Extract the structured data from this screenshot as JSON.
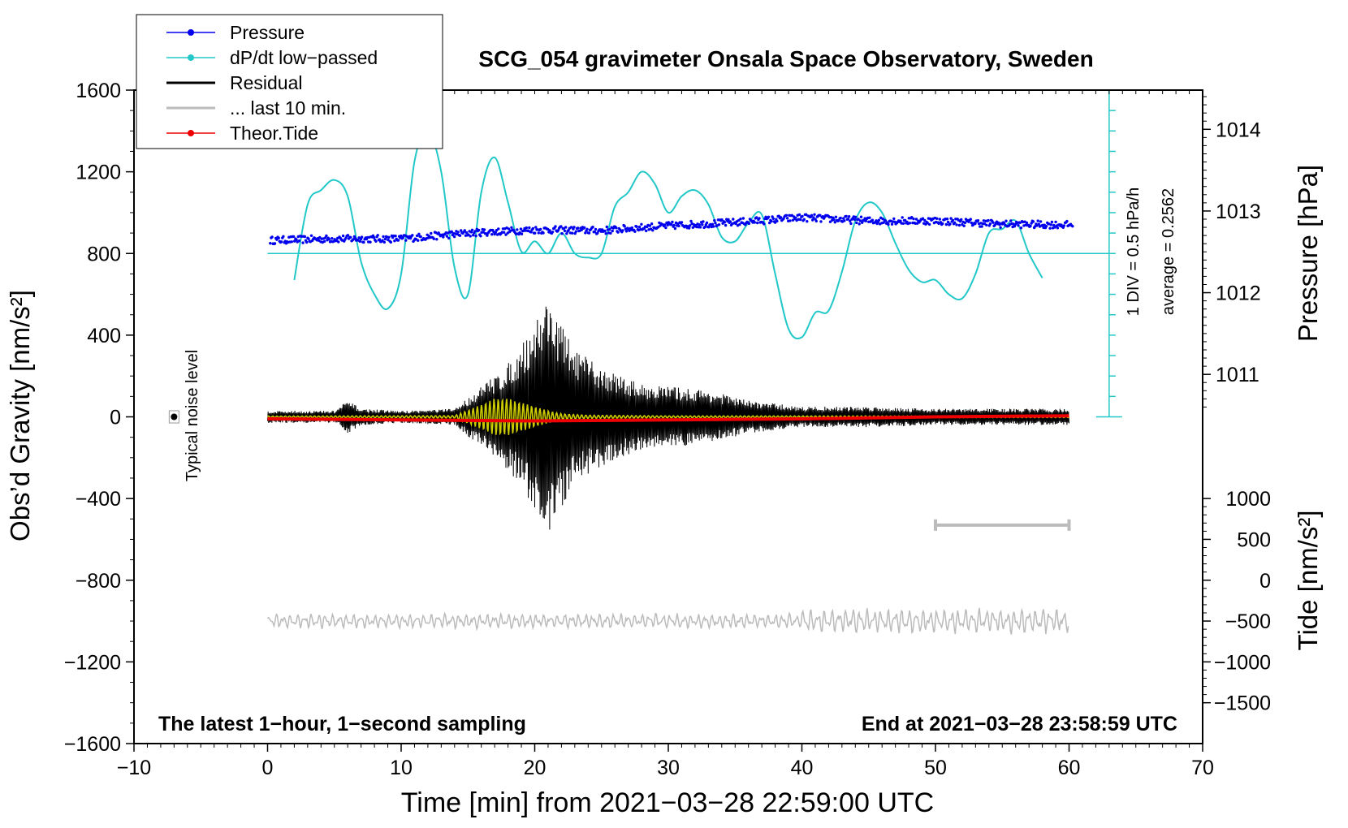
{
  "chart_data": {
    "type": "line",
    "title": "SCG_054 gravimeter Onsala Space Observatory, Sweden",
    "xlabel": "Time [min] from 2021−03−28 22:59:00 UTC",
    "ylabel_left": "Obs’d Gravity [nm/s²]",
    "ylabel_pressure": "Pressure [hPa]",
    "ylabel_tide": "Tide [nm/s²]",
    "xlim": [
      -10,
      70
    ],
    "ylim": [
      -1600,
      1600
    ],
    "x_ticks": [
      -10,
      0,
      10,
      20,
      30,
      40,
      50,
      60,
      70
    ],
    "x_tick_labels": [
      "−10",
      "0",
      "10",
      "20",
      "30",
      "40",
      "50",
      "60",
      "70"
    ],
    "y_ticks": [
      1600,
      1200,
      800,
      400,
      0,
      -400,
      -800,
      -1200,
      -1600
    ],
    "y_tick_labels": [
      "1600",
      "1200",
      "800",
      "400",
      "0",
      "−400",
      "−800",
      "−1200",
      "−1600"
    ],
    "pressure_ticks": [
      1011,
      1012,
      1013,
      1014
    ],
    "pressure_tick_labels": [
      "1011",
      "1012",
      "1013",
      "1014"
    ],
    "pressure_axis": {
      "value_at_gravity_800": 1012.48,
      "hpa_per_gravity_unit": 0.0025
    },
    "tide_ticks": [
      1000,
      500,
      0,
      -500,
      -1000,
      -1500
    ],
    "tide_tick_labels": [
      "1000",
      "500",
      "0",
      "−500",
      "−1000",
      "−1500"
    ],
    "tide_axis": {
      "zero_at_gravity": -800,
      "gravity_per_tide_unit": 0.4,
      "ymin": -1500
    },
    "series": [
      {
        "name": "Pressure",
        "color": "#0000ee",
        "unit": "hPa",
        "x": [
          0,
          5,
          10,
          15,
          20,
          25,
          30,
          35,
          40,
          45,
          50,
          55,
          60
        ],
        "values": [
          1012.64,
          1012.66,
          1012.66,
          1012.73,
          1012.77,
          1012.76,
          1012.82,
          1012.86,
          1012.92,
          1012.88,
          1012.88,
          1012.84,
          1012.83
        ]
      },
      {
        "name": "dP/dt low−passed",
        "color": "#22c8c8",
        "unit": "gravity-axis",
        "baseline": 800,
        "x": [
          2,
          3,
          4,
          5,
          6,
          7,
          8,
          9,
          10,
          11,
          12,
          13,
          14,
          15,
          16,
          17,
          18,
          19,
          20,
          21,
          22,
          23,
          24,
          25,
          26,
          27,
          28,
          29,
          30,
          31,
          32,
          33,
          34,
          35,
          36,
          37,
          38,
          39,
          40,
          41,
          42,
          43,
          44,
          45,
          46,
          47,
          48,
          49,
          50,
          51,
          52,
          53,
          54,
          55,
          56,
          57,
          58
        ],
        "values": [
          670,
          1040,
          1110,
          1160,
          1080,
          760,
          600,
          530,
          700,
          1250,
          1400,
          1200,
          730,
          600,
          1100,
          1270,
          1050,
          810,
          860,
          800,
          900,
          800,
          780,
          800,
          1030,
          1100,
          1200,
          1140,
          1000,
          1080,
          1110,
          1040,
          880,
          860,
          950,
          990,
          700,
          430,
          390,
          510,
          520,
          710,
          960,
          1050,
          1000,
          850,
          720,
          660,
          670,
          600,
          580,
          700,
          900,
          920,
          960,
          800,
          680
        ]
      },
      {
        "name": "Residual",
        "color": "#000000",
        "unit": "nm/s²",
        "envelope_x": [
          0,
          5,
          6,
          7,
          10,
          14,
          16,
          18,
          19,
          20,
          21,
          22,
          23,
          25,
          28,
          30,
          33,
          36,
          40,
          45,
          50,
          55,
          60
        ],
        "envelope_values": [
          30,
          30,
          80,
          40,
          30,
          40,
          150,
          260,
          350,
          470,
          600,
          450,
          330,
          240,
          160,
          150,
          130,
          80,
          50,
          50,
          40,
          40,
          40
        ]
      },
      {
        "name": "Residual filtered",
        "color": "#cccc00",
        "unit": "nm/s²",
        "envelope_x": [
          0,
          14,
          16,
          17,
          18,
          19,
          20,
          21,
          22,
          24,
          30,
          60
        ],
        "envelope_values": [
          4,
          6,
          60,
          90,
          90,
          70,
          50,
          30,
          15,
          8,
          5,
          4
        ]
      },
      {
        "name": "... last 10 min.",
        "color": "#bbbbbb",
        "unit": "nm/s²",
        "offset": -1000,
        "amplitude": 45,
        "x_range": [
          0,
          60
        ]
      },
      {
        "name": "Theor.Tide",
        "color": "#ee0000",
        "unit": "nm/s²",
        "x": [
          0,
          10,
          20,
          30,
          40,
          50,
          60
        ],
        "values": [
          -10,
          -15,
          -20,
          -15,
          -10,
          0,
          5
        ]
      }
    ],
    "legend": [
      {
        "label": "Pressure",
        "color": "#0000ee",
        "marker": "dot"
      },
      {
        "label": "dP/dt low−passed",
        "color": "#22c8c8",
        "marker": "dot"
      },
      {
        "label": "Residual",
        "color": "#000000",
        "marker": "line"
      },
      {
        "label": "... last 10 min.",
        "color": "#bbbbbb",
        "marker": "line"
      },
      {
        "label": "Theor.Tide",
        "color": "#ee0000",
        "marker": "dot"
      }
    ],
    "legend_position": "top-left",
    "pressure_scale": {
      "label": "1 DIV = 0.5 hPa/h",
      "average_label": "average = 0.2562",
      "x": 63,
      "from": 0,
      "to": 1600
    },
    "noise_level": {
      "label": "Typical noise level",
      "x": -7,
      "value": 0,
      "error": 30
    },
    "range_bar": {
      "x_start": 50,
      "x_end": 60,
      "value": -530,
      "color": "#bbbbbb"
    },
    "annotation_bottom_left": "The latest 1−hour, 1−second sampling",
    "annotation_bottom_right": "End at 2021−03−28 23:58:59 UTC"
  }
}
